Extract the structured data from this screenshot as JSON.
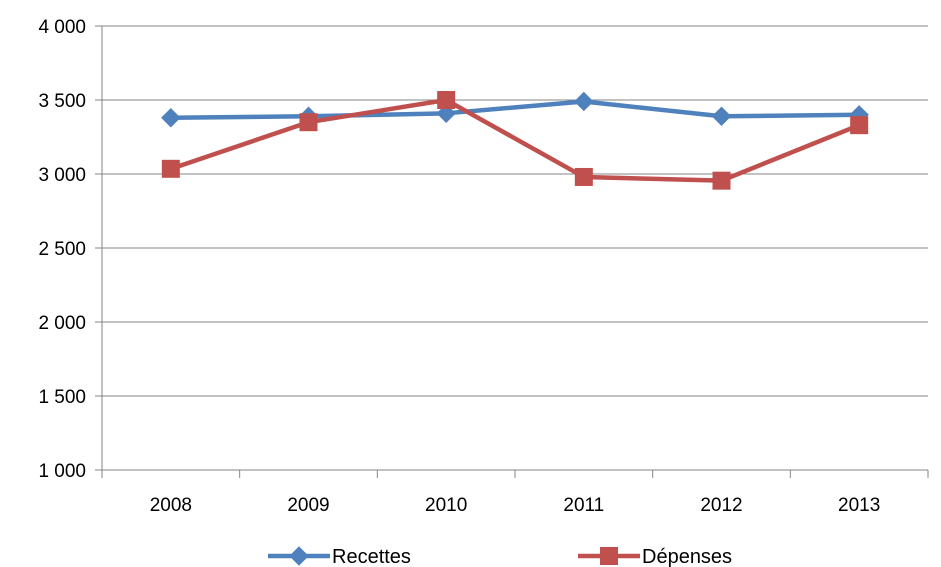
{
  "chart_data": {
    "type": "line",
    "title": "",
    "xlabel": "",
    "ylabel": "",
    "x": [
      "2008",
      "2009",
      "2010",
      "2011",
      "2012",
      "2013"
    ],
    "ylim": [
      1000,
      4000
    ],
    "yticks": [
      1000,
      1500,
      2000,
      2500,
      3000,
      3500,
      4000
    ],
    "ytick_labels": [
      "1 000",
      "1 500",
      "2 000",
      "2 500",
      "3 000",
      "3 500",
      "4 000"
    ],
    "grid": "horizontal",
    "legend_position": "bottom",
    "series": [
      {
        "name": "Recettes",
        "values": [
          3380,
          3390,
          3410,
          3490,
          3390,
          3400
        ],
        "color": "#4F81BD",
        "marker": "diamond"
      },
      {
        "name": "Dépenses",
        "values": [
          3035,
          3350,
          3500,
          2980,
          2955,
          3330
        ],
        "color": "#C0504D",
        "marker": "square"
      }
    ]
  }
}
